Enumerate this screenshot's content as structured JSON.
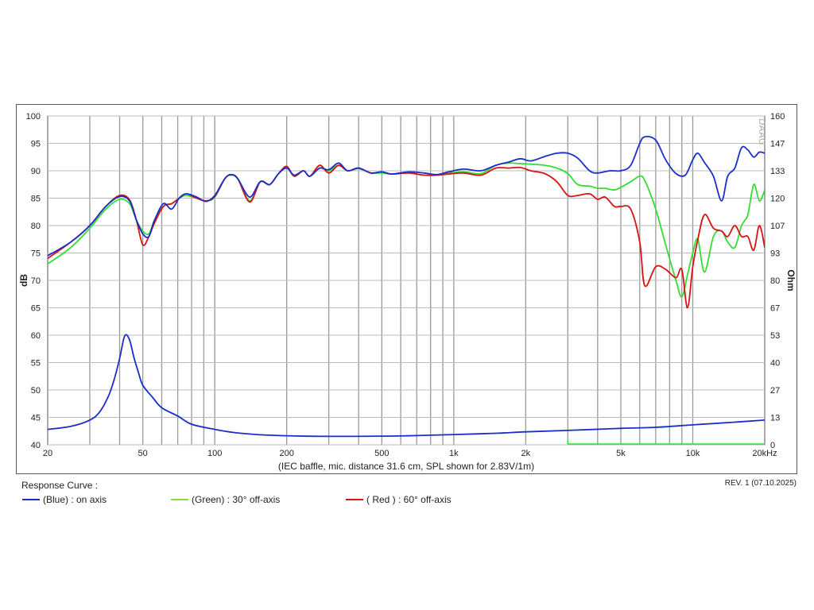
{
  "chart_data": {
    "type": "line",
    "xscale": "log",
    "xlim": [
      20,
      20000
    ],
    "ylim": [
      40,
      100
    ],
    "y2lim": [
      0,
      160
    ],
    "x_ticks": [
      20,
      50,
      100,
      200,
      500,
      1000,
      2000,
      5000,
      10000,
      20000
    ],
    "x_tick_labels": [
      "20",
      "50",
      "100",
      "200",
      "500",
      "1k",
      "2k",
      "5k",
      "10k",
      "20kHz"
    ],
    "y_ticks": [
      100,
      95,
      90,
      85,
      80,
      75,
      70,
      65,
      60,
      55,
      50,
      45,
      40
    ],
    "y2_tick_labels": [
      "160",
      "147",
      "133",
      "120",
      "107",
      "93",
      "80",
      "67",
      "53",
      "40",
      "27",
      "13",
      "0"
    ],
    "ylabel": "dB",
    "y2label": "Ohm",
    "xlabel": "(IEC baffle, mic. distance 31.6 cm, SPL shown for 2.83V/1m)",
    "grid": true,
    "watermark": "DAAG",
    "colors": {
      "blue": "#1a2ecc",
      "green": "#33dd33",
      "red": "#dd1111",
      "impedance": "#1a2ecc",
      "impedance_low": "#33dd33"
    },
    "series": [
      {
        "name": "(Blue)  : on axis",
        "color": "#1a2ecc",
        "points": [
          [
            20,
            74.5
          ],
          [
            25,
            77
          ],
          [
            30,
            80
          ],
          [
            35,
            83.5
          ],
          [
            40,
            85.3
          ],
          [
            44,
            84.5
          ],
          [
            47,
            81
          ],
          [
            50,
            78.5
          ],
          [
            53,
            78
          ],
          [
            56,
            81
          ],
          [
            61,
            84
          ],
          [
            66,
            83
          ],
          [
            71,
            85
          ],
          [
            76,
            85.8
          ],
          [
            84,
            85.2
          ],
          [
            92,
            84.4
          ],
          [
            100,
            85.5
          ],
          [
            110,
            88.5
          ],
          [
            117,
            89.3
          ],
          [
            125,
            88.5
          ],
          [
            140,
            85.2
          ],
          [
            155,
            88
          ],
          [
            170,
            87.5
          ],
          [
            185,
            89.5
          ],
          [
            200,
            90.5
          ],
          [
            215,
            89.2
          ],
          [
            235,
            90
          ],
          [
            250,
            89
          ],
          [
            275,
            90.5
          ],
          [
            300,
            90.2
          ],
          [
            330,
            91.4
          ],
          [
            360,
            90
          ],
          [
            400,
            90.5
          ],
          [
            450,
            89.6
          ],
          [
            500,
            89.8
          ],
          [
            550,
            89.4
          ],
          [
            650,
            89.8
          ],
          [
            750,
            89.6
          ],
          [
            850,
            89.3
          ],
          [
            950,
            89.8
          ],
          [
            1100,
            90.3
          ],
          [
            1300,
            90
          ],
          [
            1500,
            91
          ],
          [
            1700,
            91.6
          ],
          [
            1900,
            92.2
          ],
          [
            2100,
            91.8
          ],
          [
            2400,
            92.6
          ],
          [
            2700,
            93.2
          ],
          [
            3000,
            93.2
          ],
          [
            3300,
            92.3
          ],
          [
            3700,
            90
          ],
          [
            4000,
            89.6
          ],
          [
            4500,
            90
          ],
          [
            5000,
            90
          ],
          [
            5500,
            91
          ],
          [
            6000,
            95
          ],
          [
            6300,
            96.2
          ],
          [
            7000,
            95.6
          ],
          [
            7700,
            92
          ],
          [
            8500,
            89.5
          ],
          [
            9300,
            89.2
          ],
          [
            10000,
            92
          ],
          [
            10500,
            93.2
          ],
          [
            11200,
            91.5
          ],
          [
            12200,
            89
          ],
          [
            13200,
            84.5
          ],
          [
            14000,
            89
          ],
          [
            15000,
            90.5
          ],
          [
            16000,
            94.2
          ],
          [
            17000,
            93.8
          ],
          [
            18000,
            92.5
          ],
          [
            19000,
            93.4
          ],
          [
            20000,
            93.2
          ]
        ]
      },
      {
        "name": "(Green) : 30° off-axis",
        "color": "#33dd33",
        "points": [
          [
            20,
            73
          ],
          [
            25,
            76
          ],
          [
            30,
            79.5
          ],
          [
            35,
            83
          ],
          [
            40,
            84.8
          ],
          [
            44,
            84
          ],
          [
            47,
            81
          ],
          [
            50,
            79
          ],
          [
            53,
            78.5
          ],
          [
            56,
            81
          ],
          [
            61,
            83.5
          ],
          [
            66,
            84
          ],
          [
            71,
            85
          ],
          [
            76,
            85.5
          ],
          [
            84,
            85
          ],
          [
            92,
            84.5
          ],
          [
            100,
            85.2
          ],
          [
            110,
            88.5
          ],
          [
            117,
            89.2
          ],
          [
            125,
            88.5
          ],
          [
            140,
            84.5
          ],
          [
            155,
            88
          ],
          [
            170,
            87.5
          ],
          [
            185,
            89.5
          ],
          [
            200,
            90.6
          ],
          [
            215,
            89
          ],
          [
            235,
            90
          ],
          [
            250,
            89
          ],
          [
            275,
            90.5
          ],
          [
            300,
            90
          ],
          [
            330,
            91
          ],
          [
            360,
            90
          ],
          [
            400,
            90.4
          ],
          [
            450,
            89.6
          ],
          [
            500,
            89.6
          ],
          [
            550,
            89.4
          ],
          [
            650,
            89.6
          ],
          [
            750,
            89.2
          ],
          [
            850,
            89.2
          ],
          [
            950,
            89.6
          ],
          [
            1100,
            89.8
          ],
          [
            1300,
            89.5
          ],
          [
            1500,
            91
          ],
          [
            1700,
            91.4
          ],
          [
            1900,
            91.3
          ],
          [
            2100,
            91.2
          ],
          [
            2400,
            91
          ],
          [
            2700,
            90.5
          ],
          [
            3000,
            89.5
          ],
          [
            3300,
            87.5
          ],
          [
            3700,
            87.2
          ],
          [
            4000,
            86.8
          ],
          [
            4300,
            86.8
          ],
          [
            4700,
            86.5
          ],
          [
            5000,
            87
          ],
          [
            5500,
            88
          ],
          [
            6000,
            89
          ],
          [
            6300,
            88.2
          ],
          [
            7000,
            83
          ],
          [
            7700,
            76.5
          ],
          [
            8500,
            70
          ],
          [
            9000,
            67
          ],
          [
            9500,
            71
          ],
          [
            10000,
            75
          ],
          [
            10500,
            77.5
          ],
          [
            11200,
            71.5
          ],
          [
            12200,
            78
          ],
          [
            13200,
            79
          ],
          [
            14000,
            77
          ],
          [
            15000,
            76
          ],
          [
            16000,
            80
          ],
          [
            17000,
            82
          ],
          [
            18000,
            87.5
          ],
          [
            19000,
            84.5
          ],
          [
            20000,
            86.5
          ]
        ]
      },
      {
        "name": "( Red ) : 60° off-axis",
        "color": "#dd1111",
        "points": [
          [
            20,
            74
          ],
          [
            25,
            77
          ],
          [
            30,
            80
          ],
          [
            35,
            83.5
          ],
          [
            40,
            85.5
          ],
          [
            44,
            84.7
          ],
          [
            47,
            81
          ],
          [
            50,
            76.5
          ],
          [
            53,
            78
          ],
          [
            56,
            80.5
          ],
          [
            61,
            83.5
          ],
          [
            66,
            84
          ],
          [
            71,
            85
          ],
          [
            76,
            85.8
          ],
          [
            84,
            85
          ],
          [
            92,
            84.5
          ],
          [
            100,
            85.3
          ],
          [
            110,
            88.5
          ],
          [
            117,
            89.3
          ],
          [
            125,
            88.5
          ],
          [
            140,
            84.3
          ],
          [
            155,
            88
          ],
          [
            170,
            87.5
          ],
          [
            185,
            89.5
          ],
          [
            200,
            90.8
          ],
          [
            215,
            89
          ],
          [
            235,
            90
          ],
          [
            250,
            89
          ],
          [
            275,
            91
          ],
          [
            300,
            89.6
          ],
          [
            330,
            91
          ],
          [
            360,
            90
          ],
          [
            400,
            90.5
          ],
          [
            450,
            89.6
          ],
          [
            500,
            89.8
          ],
          [
            550,
            89.4
          ],
          [
            650,
            89.6
          ],
          [
            750,
            89.2
          ],
          [
            850,
            89.2
          ],
          [
            950,
            89.4
          ],
          [
            1100,
            89.6
          ],
          [
            1300,
            89.2
          ],
          [
            1500,
            90.5
          ],
          [
            1700,
            90.5
          ],
          [
            1900,
            90.6
          ],
          [
            2100,
            90
          ],
          [
            2400,
            89.5
          ],
          [
            2700,
            88
          ],
          [
            3000,
            85.5
          ],
          [
            3300,
            85.5
          ],
          [
            3700,
            85.8
          ],
          [
            4000,
            84.8
          ],
          [
            4300,
            85.2
          ],
          [
            4700,
            83.5
          ],
          [
            5000,
            83.5
          ],
          [
            5500,
            83
          ],
          [
            6000,
            77
          ],
          [
            6300,
            69
          ],
          [
            7000,
            72.5
          ],
          [
            7700,
            72
          ],
          [
            8500,
            70.5
          ],
          [
            9000,
            72
          ],
          [
            9500,
            65
          ],
          [
            10000,
            72.5
          ],
          [
            10500,
            77.5
          ],
          [
            11200,
            82
          ],
          [
            12200,
            79.5
          ],
          [
            13200,
            79
          ],
          [
            14000,
            78
          ],
          [
            15000,
            80
          ],
          [
            16000,
            78
          ],
          [
            17000,
            78
          ],
          [
            18000,
            75.5
          ],
          [
            19000,
            80
          ],
          [
            20000,
            76
          ]
        ]
      },
      {
        "name": "Impedance",
        "axis": "y2",
        "color": "#1a2ecc",
        "points": [
          [
            20,
            7.5
          ],
          [
            25,
            9
          ],
          [
            30,
            12
          ],
          [
            33,
            16
          ],
          [
            36,
            24
          ],
          [
            38,
            32
          ],
          [
            40,
            42
          ],
          [
            42,
            53
          ],
          [
            44,
            51
          ],
          [
            46,
            42
          ],
          [
            48,
            35
          ],
          [
            50,
            29
          ],
          [
            55,
            23
          ],
          [
            60,
            18
          ],
          [
            70,
            14
          ],
          [
            80,
            10
          ],
          [
            100,
            7.5
          ],
          [
            120,
            6
          ],
          [
            150,
            5
          ],
          [
            200,
            4.4
          ],
          [
            300,
            4.1
          ],
          [
            500,
            4.2
          ],
          [
            700,
            4.5
          ],
          [
            1000,
            5
          ],
          [
            1500,
            5.6
          ],
          [
            2000,
            6.3
          ],
          [
            3000,
            7
          ],
          [
            5000,
            8
          ],
          [
            7000,
            8.5
          ],
          [
            10000,
            9.7
          ],
          [
            15000,
            11
          ],
          [
            20000,
            12
          ]
        ]
      }
    ]
  },
  "legend": {
    "title": "Response Curve :",
    "items": [
      {
        "label": "(Blue)  : on axis",
        "color": "#1a2ecc"
      },
      {
        "label": "(Green) : 30° off-axis",
        "color": "#88dd33"
      },
      {
        "label": "( Red ) : 60° off-axis",
        "color": "#dd1111"
      }
    ]
  },
  "revision": "REV. 1 (07.10.2025)"
}
